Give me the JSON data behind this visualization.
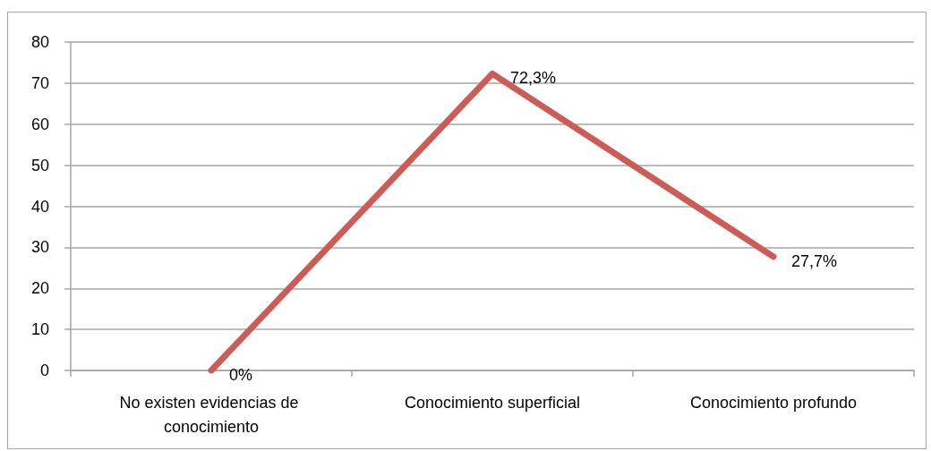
{
  "chart_data": {
    "type": "line",
    "categories": [
      "No existen evidencias de conocimiento",
      "Conocimiento superficial",
      "Conocimiento profundo"
    ],
    "values": [
      0,
      72.3,
      27.7
    ],
    "value_labels": [
      "0%",
      "72,3%",
      "27,7%"
    ],
    "color": "#cd5c57",
    "ylim": [
      0,
      80
    ],
    "yticks": [
      0,
      10,
      20,
      30,
      40,
      50,
      60,
      70,
      80
    ],
    "grid": "y",
    "marker": "none",
    "line_style": "solid"
  }
}
